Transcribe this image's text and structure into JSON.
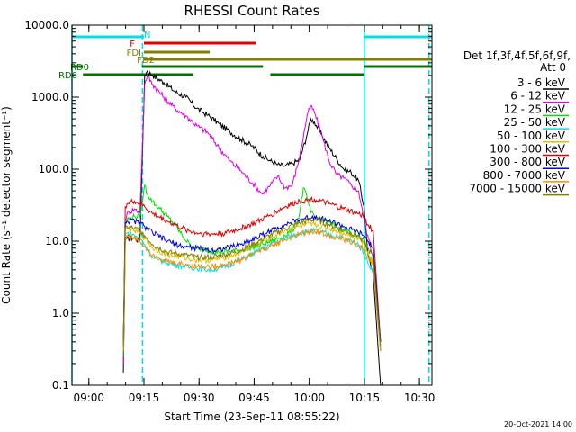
{
  "chart_data": {
    "type": "line",
    "title": "RHESSI Count Rates",
    "xlabel": "Start Time (23-Sep-11 08:55:22)",
    "ylabel": "Count Rate (s⁻¹ detector segment⁻¹)",
    "yscale": "log",
    "ylim": [
      0.1,
      10000
    ],
    "xlim_minutes": [
      0,
      98
    ],
    "y_tick_labels": [
      "0.1",
      "1.0",
      "10.0",
      "100.0",
      "1000.0",
      "10000.0"
    ],
    "y_tick_values": [
      0.1,
      1,
      10,
      100,
      1000,
      10000
    ],
    "x_tick_labels": [
      "09:00",
      "09:15",
      "09:30",
      "09:45",
      "10:00",
      "10:15",
      "10:30"
    ],
    "x_tick_values_min": [
      4.6,
      19.6,
      34.6,
      49.6,
      64.6,
      79.6,
      94.6
    ],
    "legend": {
      "header_line1": "Det 1f,3f,4f,5f,6f,9f,",
      "header_line2": "Att 0",
      "position": "right"
    },
    "series": [
      {
        "name": "3 - 6 keV",
        "color": "#000000",
        "x": [
          14,
          14.5,
          15,
          17,
          18.5,
          19.8,
          20.5,
          22,
          25,
          28,
          31,
          34,
          37,
          40,
          43,
          46,
          49,
          52,
          54,
          56,
          58,
          60,
          62,
          64,
          65,
          66,
          68,
          70,
          72,
          74,
          76,
          78,
          79.5,
          80.5,
          82,
          84
        ],
        "y": [
          0.15,
          10,
          11,
          11,
          10,
          2000,
          2300,
          2000,
          1600,
          1200,
          1000,
          700,
          560,
          430,
          330,
          260,
          210,
          150,
          130,
          115,
          110,
          120,
          135,
          300,
          500,
          450,
          300,
          200,
          140,
          100,
          90,
          70,
          30,
          7,
          3.5,
          0.1
        ]
      },
      {
        "name": "6 - 12 keV",
        "color": "#e000e0",
        "x": [
          14,
          14.5,
          15,
          17,
          18.5,
          19.8,
          20.5,
          22,
          25,
          28,
          31,
          34,
          37,
          40,
          43,
          46,
          49,
          51,
          52,
          54,
          56,
          58,
          60,
          62,
          64,
          65,
          66,
          68,
          70,
          72,
          74,
          76,
          78,
          79.5,
          80.5,
          82,
          84
        ],
        "y": [
          0.2,
          20,
          24,
          28,
          25,
          1500,
          2000,
          1500,
          1000,
          700,
          550,
          400,
          320,
          200,
          130,
          95,
          65,
          50,
          45,
          60,
          80,
          55,
          60,
          150,
          550,
          750,
          620,
          300,
          130,
          85,
          75,
          60,
          50,
          20,
          12,
          6,
          0.3
        ]
      },
      {
        "name": "12 - 25 keV",
        "color": "#00e000",
        "x": [
          14,
          14.5,
          15,
          17,
          18.5,
          19.8,
          20.5,
          22,
          24,
          26,
          28,
          30,
          32,
          34,
          40,
          46,
          52,
          58,
          61,
          62,
          63,
          64,
          65,
          66,
          68,
          72,
          76,
          79.5,
          80.5,
          82,
          84
        ],
        "y": [
          0.25,
          18,
          20,
          22,
          22,
          60,
          45,
          35,
          28,
          22,
          17,
          12,
          9,
          8,
          7,
          7.5,
          9,
          12,
          16,
          25,
          55,
          40,
          25,
          22,
          20,
          16,
          13,
          10,
          7,
          5,
          0.3
        ]
      },
      {
        "name": "25 - 50 keV",
        "color": "#00e0e0",
        "x": [
          14,
          14.5,
          15,
          17,
          18.5,
          19.8,
          22,
          26,
          30,
          34,
          38,
          42,
          46,
          50,
          54,
          58,
          62,
          66,
          70,
          74,
          78,
          79.5,
          80.5,
          82,
          84
        ],
        "y": [
          0.3,
          12,
          13,
          12,
          11,
          9,
          6,
          5,
          4.5,
          4.2,
          4,
          4.5,
          5.5,
          7,
          9,
          11,
          13,
          14,
          12.5,
          11,
          9,
          7,
          5,
          4,
          0.3
        ]
      },
      {
        "name": "50 - 100 keV",
        "color": "#e0c000",
        "x": [
          14,
          14.5,
          15,
          17,
          18.5,
          19.8,
          22,
          26,
          30,
          34,
          38,
          42,
          46,
          50,
          54,
          58,
          62,
          66,
          70,
          74,
          78,
          79.5,
          80.5,
          82,
          84
        ],
        "y": [
          0.35,
          14,
          15,
          14,
          13,
          11,
          8,
          6.5,
          6,
          5.5,
          5.5,
          6,
          7,
          9,
          11,
          14,
          16,
          17,
          15,
          13,
          11,
          9,
          7,
          5,
          0.3
        ]
      },
      {
        "name": "100 - 300 keV",
        "color": "#e00000",
        "x": [
          14,
          14.5,
          15,
          17,
          18.5,
          19.8,
          22,
          26,
          30,
          34,
          38,
          42,
          46,
          50,
          54,
          58,
          62,
          66,
          70,
          74,
          78,
          79.5,
          80.5,
          82,
          84
        ],
        "y": [
          0.4,
          30,
          33,
          36,
          33,
          30,
          24,
          19,
          15,
          13,
          12.5,
          13,
          15,
          18,
          23,
          30,
          36,
          38,
          33,
          28,
          24,
          22,
          17,
          14,
          0.4
        ]
      },
      {
        "name": "300 - 800 keV",
        "color": "#0000e0",
        "x": [
          14,
          14.5,
          15,
          17,
          18.5,
          19.8,
          22,
          26,
          30,
          34,
          38,
          42,
          46,
          50,
          54,
          58,
          62,
          66,
          70,
          74,
          78,
          79.5,
          80.5,
          82,
          84
        ],
        "y": [
          0.4,
          18,
          19,
          19,
          18,
          16,
          13,
          10,
          8.5,
          8,
          7.5,
          8,
          9,
          11,
          14,
          17,
          20,
          22,
          19,
          16,
          13,
          12,
          10,
          8,
          0.4
        ]
      },
      {
        "name": "800 - 7000 keV",
        "color": "#ff8c00",
        "x": [
          14,
          14.5,
          15,
          17,
          18.5,
          19.8,
          22,
          26,
          30,
          34,
          38,
          42,
          46,
          50,
          54,
          58,
          62,
          66,
          70,
          74,
          78,
          79.5,
          80.5,
          82,
          84
        ],
        "y": [
          0.3,
          11,
          12,
          11,
          10,
          8.5,
          6.5,
          5.2,
          4.8,
          4.5,
          4.4,
          4.8,
          5.5,
          7,
          8.5,
          10.5,
          12.5,
          14,
          12,
          10.5,
          9,
          7.5,
          6,
          4.5,
          0.3
        ]
      },
      {
        "name": "7000 - 15000 keV",
        "color": "#808000",
        "x": [
          14,
          14.5,
          15,
          17,
          18.5,
          19.8,
          22,
          26,
          30,
          34,
          38,
          42,
          46,
          50,
          54,
          58,
          62,
          66,
          70,
          74,
          78,
          79.5,
          80.5,
          82,
          84
        ],
        "y": [
          0.35,
          15,
          16,
          15,
          14,
          12,
          9,
          7,
          6.5,
          6,
          6,
          6.5,
          7.5,
          9.5,
          12,
          15,
          18,
          20,
          17,
          14,
          12,
          10,
          8,
          6,
          0.35
        ]
      }
    ],
    "status_bars": [
      {
        "label": "N",
        "color": "#00e0e0",
        "segments": [
          [
            0,
            19.6
          ],
          [
            79.6,
            98
          ]
        ]
      },
      {
        "label": "F",
        "color": "#e00000",
        "segments": [
          [
            19.6,
            50
          ]
        ]
      },
      {
        "label": "FDI",
        "color": "#808000",
        "segments": [
          [
            19.6,
            37.5
          ]
        ]
      },
      {
        "label": "FD2",
        "color": "#808000",
        "segments": [
          [
            19.6,
            98
          ]
        ]
      },
      {
        "label": "RD0",
        "color": "#007000",
        "segments": [
          [
            0,
            3
          ],
          [
            19,
            52
          ],
          [
            79.6,
            98
          ]
        ]
      },
      {
        "label": "RD6",
        "color": "#007000",
        "segments": [
          [
            3,
            33
          ],
          [
            54,
            79.6
          ]
        ]
      }
    ],
    "vertical_lines": [
      {
        "x": 0,
        "style": "solid",
        "color": "#00e0e0"
      },
      {
        "x": 19.2,
        "style": "dashed",
        "color": "#00e0e0"
      },
      {
        "x": 79.6,
        "style": "solid",
        "color": "#00e0e0"
      },
      {
        "x": 97.2,
        "style": "dashed",
        "color": "#00e0e0"
      }
    ],
    "grid": false
  },
  "footer_date": "20-Oct-2021 14:00"
}
